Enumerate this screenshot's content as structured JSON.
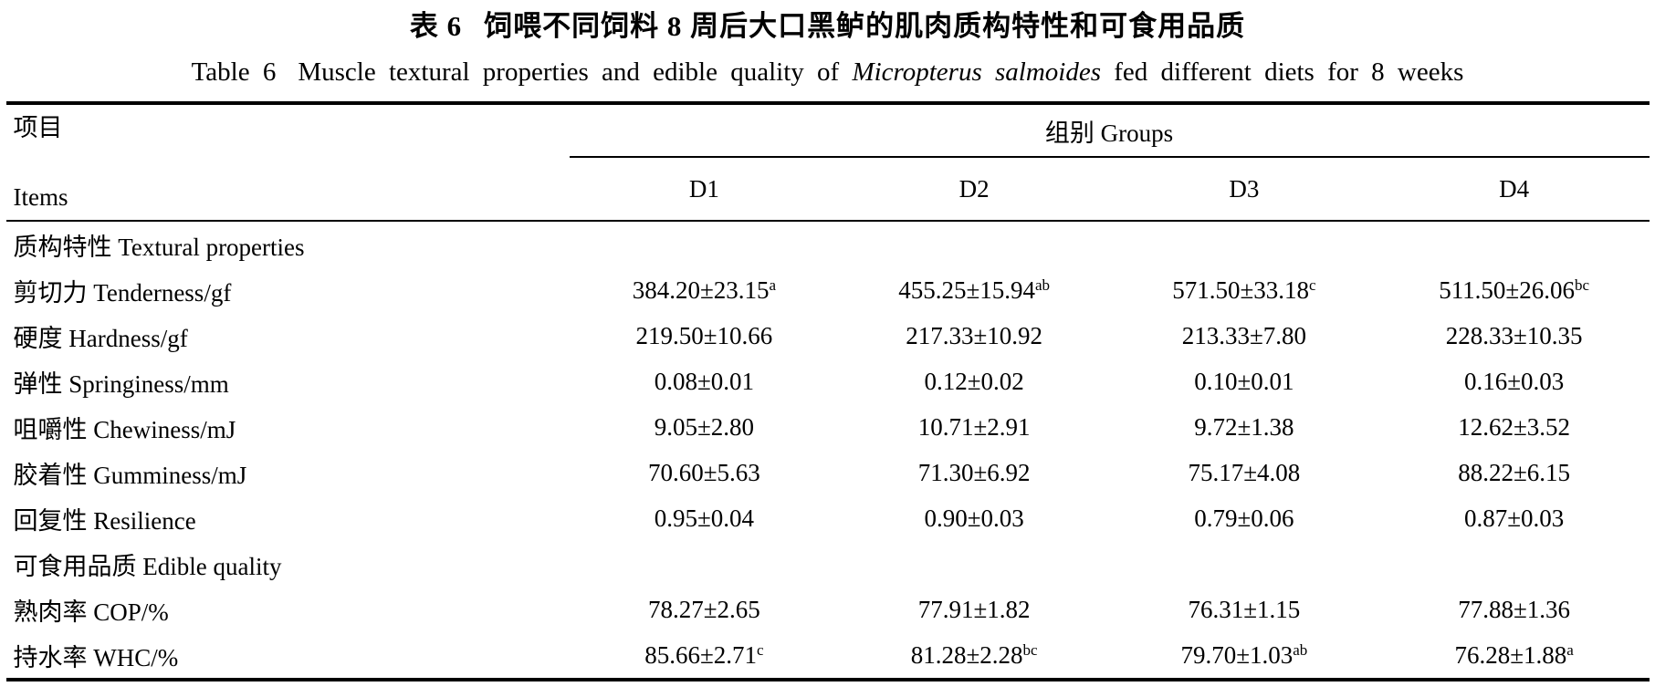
{
  "page": {
    "title_zh": {
      "label": "表 6",
      "text": "饲喂不同饲料 8 周后大口黑鲈的肌肉质构特性和可食用品质"
    },
    "title_en": {
      "label": "Table 6",
      "before_italic": "Muscle textural properties and edible quality of",
      "italic": "Micropterus salmoides",
      "after_italic": "fed different diets for 8 weeks"
    }
  },
  "table": {
    "items_header": {
      "zh": "项目",
      "en": "Items"
    },
    "groups_header": "组别 Groups",
    "group_columns": [
      "D1",
      "D2",
      "D3",
      "D4"
    ],
    "rows": [
      {
        "type": "section",
        "label": "质构特性 Textural properties"
      },
      {
        "type": "data",
        "label": "剪切力 Tenderness/gf",
        "values": [
          {
            "text": "384.20±23.15",
            "sup": "a"
          },
          {
            "text": "455.25±15.94",
            "sup": "ab"
          },
          {
            "text": "571.50±33.18",
            "sup": "c"
          },
          {
            "text": "511.50±26.06",
            "sup": "bc"
          }
        ]
      },
      {
        "type": "data",
        "label": "硬度 Hardness/gf",
        "values": [
          {
            "text": "219.50±10.66",
            "sup": ""
          },
          {
            "text": "217.33±10.92",
            "sup": ""
          },
          {
            "text": "213.33±7.80",
            "sup": ""
          },
          {
            "text": "228.33±10.35",
            "sup": ""
          }
        ]
      },
      {
        "type": "data",
        "label": "弹性 Springiness/mm",
        "values": [
          {
            "text": "0.08±0.01",
            "sup": ""
          },
          {
            "text": "0.12±0.02",
            "sup": ""
          },
          {
            "text": "0.10±0.01",
            "sup": ""
          },
          {
            "text": "0.16±0.03",
            "sup": ""
          }
        ]
      },
      {
        "type": "data",
        "label": "咀嚼性 Chewiness/mJ",
        "values": [
          {
            "text": "9.05±2.80",
            "sup": ""
          },
          {
            "text": "10.71±2.91",
            "sup": ""
          },
          {
            "text": "9.72±1.38",
            "sup": ""
          },
          {
            "text": "12.62±3.52",
            "sup": ""
          }
        ]
      },
      {
        "type": "data",
        "label": "胶着性 Gumminess/mJ",
        "values": [
          {
            "text": "70.60±5.63",
            "sup": ""
          },
          {
            "text": "71.30±6.92",
            "sup": ""
          },
          {
            "text": "75.17±4.08",
            "sup": ""
          },
          {
            "text": "88.22±6.15",
            "sup": ""
          }
        ]
      },
      {
        "type": "data",
        "label": "回复性 Resilience",
        "values": [
          {
            "text": "0.95±0.04",
            "sup": ""
          },
          {
            "text": "0.90±0.03",
            "sup": ""
          },
          {
            "text": "0.79±0.06",
            "sup": ""
          },
          {
            "text": "0.87±0.03",
            "sup": ""
          }
        ]
      },
      {
        "type": "section",
        "label": "可食用品质 Edible quality"
      },
      {
        "type": "data",
        "label": "熟肉率 COP/%",
        "values": [
          {
            "text": "78.27±2.65",
            "sup": ""
          },
          {
            "text": "77.91±1.82",
            "sup": ""
          },
          {
            "text": "76.31±1.15",
            "sup": ""
          },
          {
            "text": "77.88±1.36",
            "sup": ""
          }
        ]
      },
      {
        "type": "data",
        "label": "持水率 WHC/%",
        "values": [
          {
            "text": "85.66±2.71",
            "sup": "c"
          },
          {
            "text": "81.28±2.28",
            "sup": "bc"
          },
          {
            "text": "79.70±1.03",
            "sup": "ab"
          },
          {
            "text": "76.28±1.88",
            "sup": "a"
          }
        ]
      }
    ]
  }
}
